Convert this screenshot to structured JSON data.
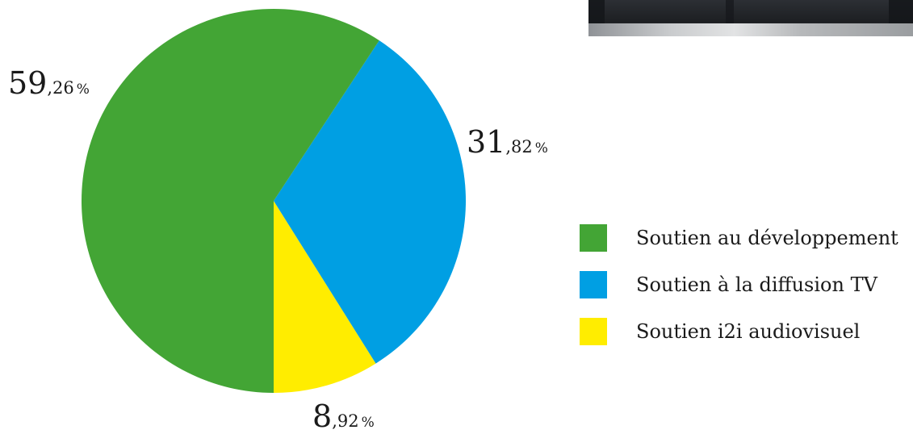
{
  "chart_data": {
    "type": "pie",
    "title": "",
    "slices": [
      {
        "label": "Soutien au développement",
        "value": 59.26,
        "integer": "59",
        "decimal": ",26",
        "symbol": "%",
        "color": "#43a535"
      },
      {
        "label": "Soutien à la diffusion TV",
        "value": 31.82,
        "integer": "31",
        "decimal": ",82",
        "symbol": "%",
        "color": "#009fe3"
      },
      {
        "label": "Soutien i2i audiovisuel",
        "value": 8.92,
        "integer": "8",
        "decimal": ",92",
        "symbol": "%",
        "color": "#ffed00"
      }
    ],
    "legend_position": "right"
  }
}
